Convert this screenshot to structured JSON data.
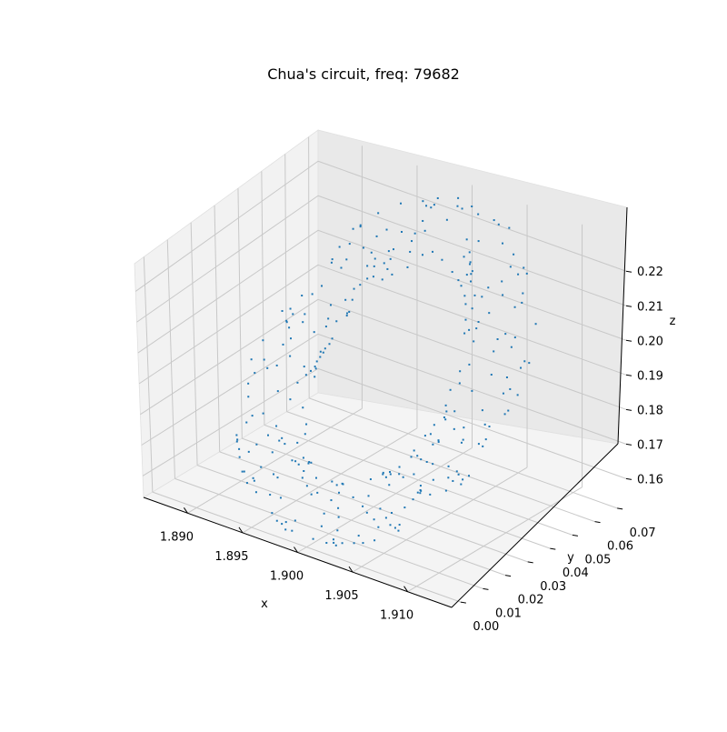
{
  "chart_data": {
    "type": "scatter",
    "projection": "3d",
    "title": "Chua's circuit, freq: 79682",
    "xlabel": "x",
    "ylabel": "y",
    "zlabel": "z",
    "xlim": [
      1.886,
      1.914
    ],
    "ylim": [
      -0.004,
      0.074
    ],
    "zlim": [
      0.153,
      0.229
    ],
    "xticks": [
      "1.890",
      "1.895",
      "1.900",
      "1.905",
      "1.910"
    ],
    "yticks": [
      "0.00",
      "0.01",
      "0.02",
      "0.03",
      "0.04",
      "0.05",
      "0.06",
      "0.07"
    ],
    "zticks": [
      "0.16",
      "0.17",
      "0.18",
      "0.19",
      "0.20",
      "0.21",
      "0.22"
    ],
    "grid": true,
    "marker_color": "#1f77b4",
    "series": [
      {
        "points_description": "torus-like cloud of ~300 points around x≈1.900, y 0.00–0.07, z 0.16–0.225",
        "x": [],
        "y": [],
        "z": []
      }
    ]
  }
}
